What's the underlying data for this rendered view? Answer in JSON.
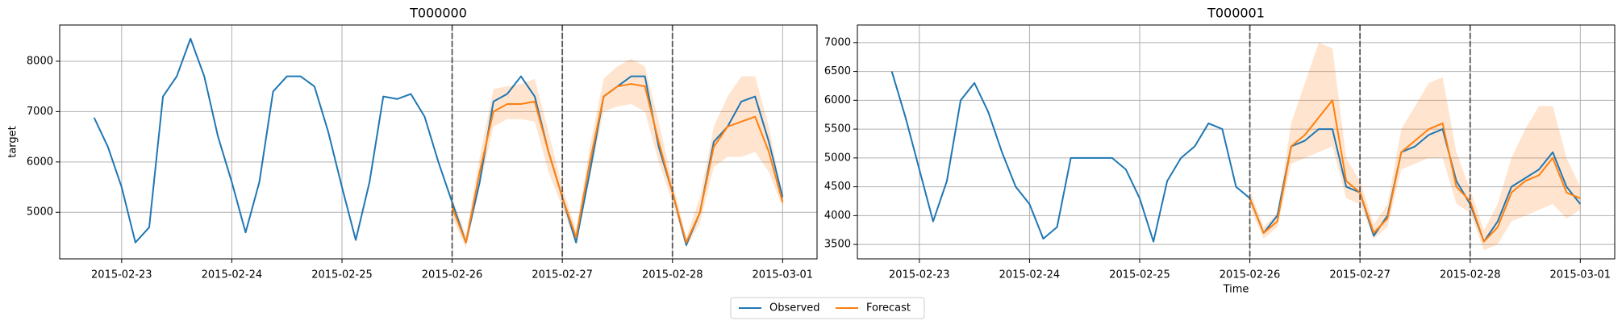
{
  "chart_data": [
    {
      "type": "line",
      "title": "T000000",
      "ylabel": "target",
      "grid": true,
      "legend": "lower center",
      "x": [
        "2015-02-22 18:00",
        "2015-02-22 21:00",
        "2015-02-23 00:00",
        "2015-02-23 03:00",
        "2015-02-23 06:00",
        "2015-02-23 09:00",
        "2015-02-23 12:00",
        "2015-02-23 15:00",
        "2015-02-23 18:00",
        "2015-02-23 21:00",
        "2015-02-24 00:00",
        "2015-02-24 03:00",
        "2015-02-24 06:00",
        "2015-02-24 09:00",
        "2015-02-24 12:00",
        "2015-02-24 15:00",
        "2015-02-24 18:00",
        "2015-02-24 21:00",
        "2015-02-25 00:00",
        "2015-02-25 03:00",
        "2015-02-25 06:00",
        "2015-02-25 09:00",
        "2015-02-25 12:00",
        "2015-02-25 15:00",
        "2015-02-25 18:00",
        "2015-02-25 21:00",
        "2015-02-26 00:00",
        "2015-02-26 03:00",
        "2015-02-26 06:00",
        "2015-02-26 09:00",
        "2015-02-26 12:00",
        "2015-02-26 15:00",
        "2015-02-26 18:00",
        "2015-02-26 21:00",
        "2015-02-27 00:00",
        "2015-02-27 03:00",
        "2015-02-27 06:00",
        "2015-02-27 09:00",
        "2015-02-27 12:00",
        "2015-02-27 15:00",
        "2015-02-27 18:00",
        "2015-02-27 21:00",
        "2015-02-28 00:00",
        "2015-02-28 03:00",
        "2015-02-28 06:00",
        "2015-02-28 09:00",
        "2015-02-28 12:00",
        "2015-02-28 15:00",
        "2015-02-28 18:00",
        "2015-02-28 21:00",
        "2015-03-01 00:00"
      ],
      "xlim": [
        "2015-02-22 10:30",
        "2015-03-01 07:30"
      ],
      "xticks": [
        "2015-02-23",
        "2015-02-24",
        "2015-02-25",
        "2015-02-26",
        "2015-02-27",
        "2015-02-28",
        "2015-03-01"
      ],
      "vlines": [
        "2015-02-26",
        "2015-02-27",
        "2015-02-28"
      ],
      "ylim": [
        4075,
        8720
      ],
      "yticks": [
        5000,
        6000,
        7000,
        8000
      ],
      "series": [
        {
          "name": "Observed",
          "color": "#1f77b4",
          "values": [
            6880,
            6300,
            5500,
            4400,
            4700,
            7300,
            7700,
            8450,
            7700,
            6500,
            5600,
            4600,
            5600,
            7400,
            7700,
            7700,
            7500,
            6600,
            5500,
            4450,
            5600,
            7300,
            7250,
            7350,
            6900,
            6000,
            5200,
            4400,
            5600,
            7200,
            7350,
            7700,
            7300,
            6200,
            5300,
            4400,
            5800,
            7300,
            7500,
            7700,
            7700,
            6300,
            5400,
            4350,
            5000,
            6400,
            6700,
            7200,
            7300,
            6400,
            5300
          ]
        },
        {
          "name": "Forecast",
          "color": "#ff7f0e",
          "values": [
            null,
            null,
            null,
            null,
            null,
            null,
            null,
            null,
            null,
            null,
            null,
            null,
            null,
            null,
            null,
            null,
            null,
            null,
            null,
            null,
            null,
            null,
            null,
            null,
            null,
            null,
            5100,
            4400,
            5800,
            7000,
            7150,
            7150,
            7200,
            6200,
            5300,
            4500,
            6000,
            7300,
            7500,
            7550,
            7500,
            6400,
            5400,
            4400,
            5000,
            6300,
            6700,
            6800,
            6900,
            6200,
            5200
          ],
          "lower": [
            null,
            null,
            null,
            null,
            null,
            null,
            null,
            null,
            null,
            null,
            null,
            null,
            null,
            null,
            null,
            null,
            null,
            null,
            null,
            null,
            null,
            null,
            null,
            null,
            null,
            null,
            4900,
            4300,
            5500,
            6700,
            6850,
            6850,
            6800,
            5800,
            5100,
            4350,
            5700,
            7000,
            7100,
            7150,
            7000,
            6000,
            5200,
            4300,
            4800,
            5900,
            6100,
            6100,
            6200,
            5800,
            5100
          ],
          "upper": [
            null,
            null,
            null,
            null,
            null,
            null,
            null,
            null,
            null,
            null,
            null,
            null,
            null,
            null,
            null,
            null,
            null,
            null,
            null,
            null,
            null,
            null,
            null,
            null,
            null,
            null,
            5300,
            4550,
            6100,
            7450,
            7500,
            7550,
            7650,
            6600,
            5500,
            4650,
            6300,
            7650,
            7900,
            8050,
            7900,
            6800,
            5600,
            4500,
            5300,
            6700,
            7300,
            7700,
            7700,
            6700,
            5300
          ]
        }
      ]
    },
    {
      "type": "line",
      "title": "T000001",
      "xlabel": "Time",
      "grid": true,
      "x": [
        "2015-02-22 18:00",
        "2015-02-22 21:00",
        "2015-02-23 00:00",
        "2015-02-23 03:00",
        "2015-02-23 06:00",
        "2015-02-23 09:00",
        "2015-02-23 12:00",
        "2015-02-23 15:00",
        "2015-02-23 18:00",
        "2015-02-23 21:00",
        "2015-02-24 00:00",
        "2015-02-24 03:00",
        "2015-02-24 06:00",
        "2015-02-24 09:00",
        "2015-02-24 12:00",
        "2015-02-24 15:00",
        "2015-02-24 18:00",
        "2015-02-24 21:00",
        "2015-02-25 00:00",
        "2015-02-25 03:00",
        "2015-02-25 06:00",
        "2015-02-25 09:00",
        "2015-02-25 12:00",
        "2015-02-25 15:00",
        "2015-02-25 18:00",
        "2015-02-25 21:00",
        "2015-02-26 00:00",
        "2015-02-26 03:00",
        "2015-02-26 06:00",
        "2015-02-26 09:00",
        "2015-02-26 12:00",
        "2015-02-26 15:00",
        "2015-02-26 18:00",
        "2015-02-26 21:00",
        "2015-02-27 00:00",
        "2015-02-27 03:00",
        "2015-02-27 06:00",
        "2015-02-27 09:00",
        "2015-02-27 12:00",
        "2015-02-27 15:00",
        "2015-02-27 18:00",
        "2015-02-27 21:00",
        "2015-02-28 00:00",
        "2015-02-28 03:00",
        "2015-02-28 06:00",
        "2015-02-28 09:00",
        "2015-02-28 12:00",
        "2015-02-28 15:00",
        "2015-02-28 18:00",
        "2015-02-28 21:00",
        "2015-03-01 00:00"
      ],
      "xlim": [
        "2015-02-22 10:30",
        "2015-03-01 07:30"
      ],
      "xticks": [
        "2015-02-23",
        "2015-02-24",
        "2015-02-25",
        "2015-02-26",
        "2015-02-27",
        "2015-02-28",
        "2015-03-01"
      ],
      "vlines": [
        "2015-02-26",
        "2015-02-27",
        "2015-02-28"
      ],
      "ylim": [
        3250,
        7305
      ],
      "yticks": [
        3500,
        4000,
        4500,
        5000,
        5500,
        6000,
        6500,
        7000
      ],
      "series": [
        {
          "name": "Observed",
          "color": "#1f77b4",
          "values": [
            6500,
            5700,
            4800,
            3900,
            4600,
            6000,
            6300,
            5800,
            5100,
            4500,
            4200,
            3600,
            3800,
            5000,
            5000,
            5000,
            5000,
            4800,
            4300,
            3550,
            4600,
            5000,
            5200,
            5600,
            5500,
            4500,
            4300,
            3700,
            4000,
            5200,
            5300,
            5500,
            5500,
            4500,
            4400,
            3650,
            4000,
            5100,
            5200,
            5400,
            5500,
            4600,
            4200,
            3550,
            3900,
            4500,
            4650,
            4800,
            5100,
            4500,
            4200
          ]
        },
        {
          "name": "Forecast",
          "color": "#ff7f0e",
          "values": [
            null,
            null,
            null,
            null,
            null,
            null,
            null,
            null,
            null,
            null,
            null,
            null,
            null,
            null,
            null,
            null,
            null,
            null,
            null,
            null,
            null,
            null,
            null,
            null,
            null,
            null,
            4300,
            3700,
            3900,
            5200,
            5400,
            5700,
            6000,
            4600,
            4400,
            3700,
            3950,
            5100,
            5300,
            5500,
            5600,
            4500,
            4250,
            3550,
            3800,
            4400,
            4600,
            4700,
            5000,
            4400,
            4300
          ],
          "lower": [
            null,
            null,
            null,
            null,
            null,
            null,
            null,
            null,
            null,
            null,
            null,
            null,
            null,
            null,
            null,
            null,
            null,
            null,
            null,
            null,
            null,
            null,
            null,
            null,
            null,
            null,
            4150,
            3600,
            3800,
            4900,
            5000,
            5100,
            5200,
            4300,
            4200,
            3600,
            3800,
            4800,
            4900,
            5000,
            5000,
            4200,
            4050,
            3400,
            3500,
            3900,
            4000,
            4100,
            4200,
            3950,
            4100
          ],
          "upper": [
            null,
            null,
            null,
            null,
            null,
            null,
            null,
            null,
            null,
            null,
            null,
            null,
            null,
            null,
            null,
            null,
            null,
            null,
            null,
            null,
            null,
            null,
            null,
            null,
            null,
            null,
            4450,
            3800,
            4050,
            5600,
            6300,
            7000,
            6900,
            5000,
            4600,
            3850,
            4200,
            5500,
            5900,
            6300,
            6400,
            5100,
            4450,
            3750,
            4200,
            5000,
            5500,
            5900,
            5900,
            5000,
            4500
          ]
        }
      ]
    }
  ]
}
